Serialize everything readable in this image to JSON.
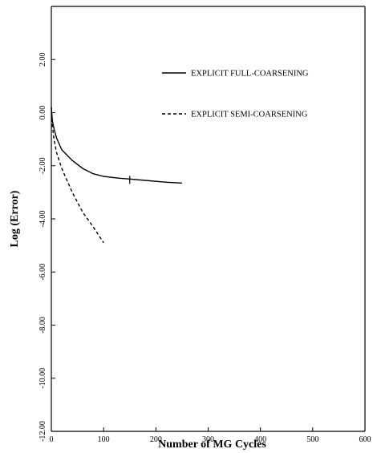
{
  "chart_data": {
    "type": "line",
    "title": "",
    "xlabel": "Number of MG Cycles",
    "ylabel": "Log (Error)",
    "xlim": [
      0,
      600
    ],
    "ylim": [
      -12,
      4
    ],
    "x_ticks": [
      {
        "value": 0,
        "label": "0"
      },
      {
        "value": 100,
        "label": "100"
      },
      {
        "value": 200,
        "label": "200"
      },
      {
        "value": 300,
        "label": "300"
      },
      {
        "value": 400,
        "label": "400"
      },
      {
        "value": 500,
        "label": "500"
      },
      {
        "value": 600,
        "label": "600"
      }
    ],
    "y_ticks": [
      {
        "value": 2,
        "label": "2.00"
      },
      {
        "value": 0,
        "label": "0.00"
      },
      {
        "value": -2,
        "label": "-2.00"
      },
      {
        "value": -4,
        "label": "-4.00"
      },
      {
        "value": -6,
        "label": "-6.00"
      },
      {
        "value": -8,
        "label": "-8.00"
      },
      {
        "value": -10,
        "label": "-10.00"
      },
      {
        "value": -12,
        "label": "-12.00"
      }
    ],
    "grid": false,
    "legend_position": "top-right",
    "series": [
      {
        "name": "EXPLICIT FULL-COARSENING",
        "style": "solid",
        "x": [
          0,
          2,
          5,
          10,
          20,
          40,
          60,
          80,
          100,
          130,
          150,
          180,
          220,
          250
        ],
        "y": [
          0.2,
          -0.3,
          -0.6,
          -0.95,
          -1.4,
          -1.8,
          -2.1,
          -2.3,
          -2.4,
          -2.47,
          -2.5,
          -2.55,
          -2.62,
          -2.65
        ]
      },
      {
        "name": "EXPLICIT SEMI-COARSENING",
        "style": "dashed",
        "x": [
          0,
          2,
          5,
          10,
          20,
          40,
          60,
          80,
          100
        ],
        "y": [
          0.2,
          -0.5,
          -1.0,
          -1.5,
          -2.1,
          -3.0,
          -3.75,
          -4.3,
          -4.9
        ]
      }
    ]
  }
}
